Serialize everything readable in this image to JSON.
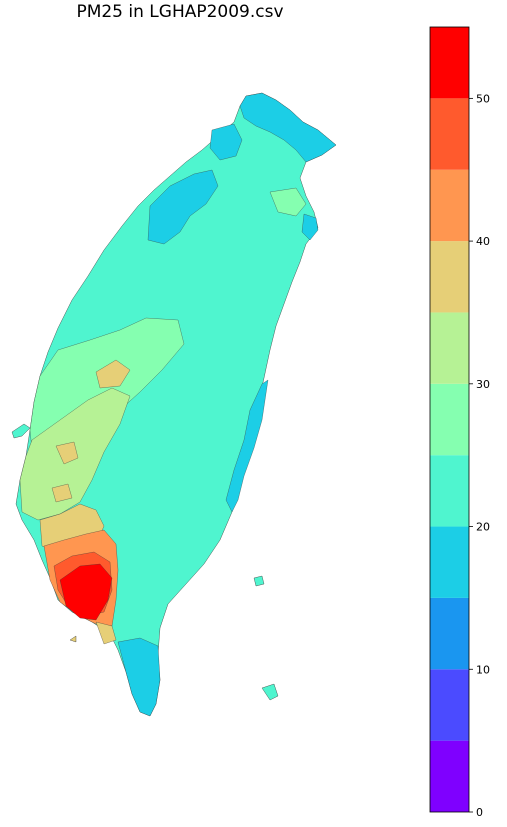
{
  "title": "PM25 in LGHAP2009.csv",
  "colorbar": {
    "min": 0,
    "max": 55,
    "step": 5,
    "ticks": [
      "0",
      "10",
      "20",
      "30",
      "40",
      "50"
    ],
    "tick_values": [
      0,
      10,
      20,
      30,
      40,
      50
    ],
    "colors": [
      "#7f00ff",
      "#4b4bff",
      "#1a96f0",
      "#1ccee6",
      "#4ff5cf",
      "#85ffb0",
      "#b6f295",
      "#e6cf77",
      "#ff9650",
      "#ff5a2d",
      "#ff0000"
    ]
  }
}
